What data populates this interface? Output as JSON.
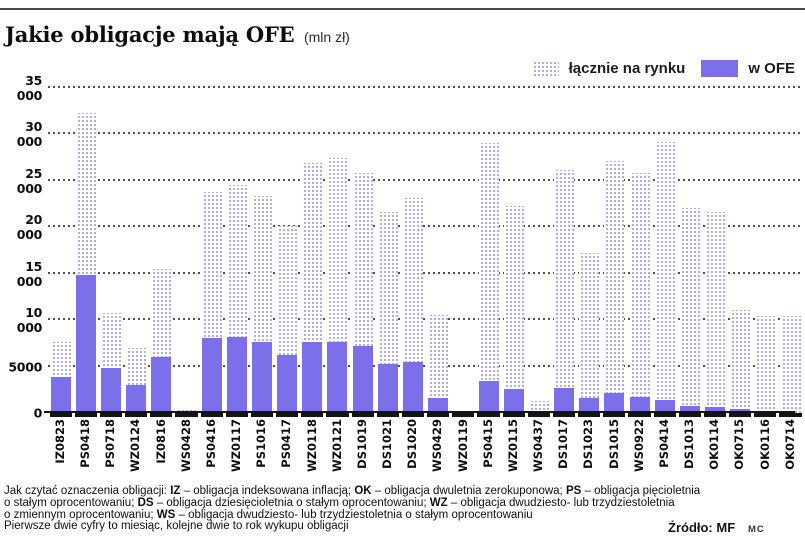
{
  "page": {
    "title": "Jakie obligacje mają OFE",
    "subtitle": "(mln zł)",
    "source": "Źródło: MF",
    "credit": "MC"
  },
  "colors": {
    "solid_bar": "#7b70ea",
    "dotted_bar": "#b3abf0",
    "gridline": "#3d3d3d",
    "axis": "#141414"
  },
  "chart_data": {
    "type": "bar",
    "title": "Jakie obligacje mają OFE",
    "subtitle": "(mln zł)",
    "unit": "mln zł",
    "legend_position": "top-right",
    "grid": "dotted-horizontal",
    "ylim": [
      0,
      35000
    ],
    "ytick_step": 5000,
    "ytick_labels": [
      "0",
      "5000",
      "10 000",
      "15 000",
      "20 000",
      "25 000",
      "30 000",
      "35 000"
    ],
    "categories": [
      "IZ0823",
      "PS0418",
      "PS0718",
      "WZ0124",
      "IZ0816",
      "WS0428",
      "PS0416",
      "WZ0117",
      "PS1016",
      "PS0417",
      "WZ0118",
      "WZ0121",
      "DS1019",
      "DS1021",
      "DS1020",
      "WS0429",
      "WZ0119",
      "PS0415",
      "WZ0115",
      "WS0437",
      "DS1017",
      "DS1023",
      "DS1015",
      "WS0922",
      "PS0414",
      "DS1013",
      "OK0114",
      "OK0715",
      "OK0116",
      "OK0714"
    ],
    "series": [
      {
        "name": "łącznie na rynku",
        "style": "dotted",
        "values": [
          7700,
          32300,
          10800,
          7000,
          15500,
          300,
          23800,
          24600,
          23400,
          20100,
          26900,
          27500,
          25900,
          21700,
          23200,
          10600,
          200,
          29100,
          22300,
          1300,
          26200,
          17200,
          27100,
          25900,
          29200,
          22100,
          21600,
          11100,
          10400,
          10500
        ]
      },
      {
        "name": "w OFE",
        "style": "solid",
        "values": [
          3900,
          14900,
          4900,
          3000,
          6000,
          0,
          8100,
          8200,
          7600,
          6200,
          7600,
          7700,
          7200,
          5300,
          5500,
          1600,
          0,
          3400,
          2600,
          0,
          2700,
          1600,
          2200,
          1700,
          1400,
          800,
          650,
          400,
          150,
          50
        ]
      }
    ]
  },
  "footer": {
    "lines": [
      [
        {
          "t": "Jak czytać oznaczenia obligacji:  ",
          "b": false
        },
        {
          "t": "IZ",
          "b": true
        },
        {
          "t": " – obligacja indeksowana inflacją;  ",
          "b": false
        },
        {
          "t": "OK",
          "b": true
        },
        {
          "t": " – obligacja dwuletnia zerokuponowa;  ",
          "b": false
        },
        {
          "t": "PS",
          "b": true
        },
        {
          "t": " – obligacja pięcioletnia",
          "b": false
        }
      ],
      [
        {
          "t": "o stałym oprocentowaniu;  ",
          "b": false
        },
        {
          "t": "DS",
          "b": true
        },
        {
          "t": " – obligacja dziesięcioletnia o stałym oprocentowaniu;  ",
          "b": false
        },
        {
          "t": "WZ",
          "b": true
        },
        {
          "t": " – obligacja dwudziesto- lub trzydziestoletnia",
          "b": false
        }
      ],
      [
        {
          "t": "o zmiennym oprocentowaniu;  ",
          "b": false
        },
        {
          "t": "WS",
          "b": true
        },
        {
          "t": " – obligacja dwudziesto- lub trzydziestoletnia o stałym oprocentowaniu",
          "b": false
        }
      ],
      [
        {
          "t": "Pierwsze dwie cyfry to miesiąc, kolejne dwie to rok wykupu obligacji",
          "b": false
        }
      ]
    ]
  }
}
